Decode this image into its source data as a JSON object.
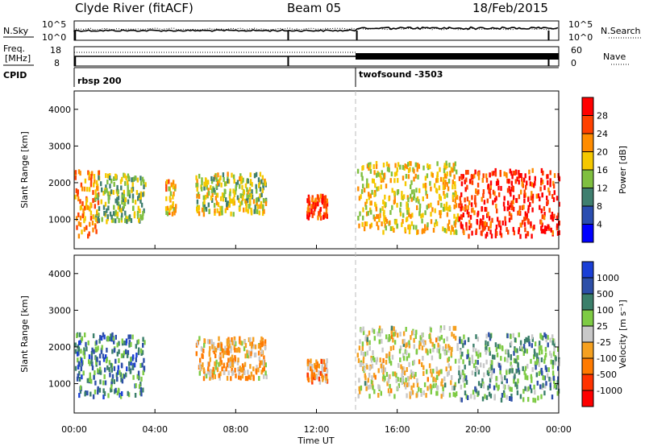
{
  "header": {
    "station": "Clyde River (fitACF)",
    "beam": "Beam 05",
    "date": "18/Feb/2015"
  },
  "noise_panel": {
    "left_label": "N.Sky",
    "left_ticks": [
      "10^5",
      "10^0"
    ],
    "right_label": "N.Search",
    "right_ticks": [
      "10^5",
      "10^0"
    ]
  },
  "freq_panel": {
    "left_label_1": "Freq.",
    "left_label_2": "[MHz]",
    "left_ticks": [
      "18",
      "8"
    ],
    "right_label": "Nave",
    "right_ticks": [
      "60",
      "0"
    ]
  },
  "cpid": {
    "label": "CPID",
    "segments": [
      {
        "name": "rbsp 200"
      },
      {
        "name": "twofsound -3503"
      }
    ],
    "switch_hour": 14.0
  },
  "time_axis": {
    "label": "Time UT",
    "ticks": [
      "00:00",
      "04:00",
      "08:00",
      "12:00",
      "16:00",
      "20:00",
      "00:00"
    ]
  },
  "colors": {
    "power_scale": [
      "#0000ff",
      "#2a4db0",
      "#3f7f6f",
      "#7fbf3f",
      "#f5c800",
      "#ff8c00",
      "#ff4000",
      "#ff0000"
    ],
    "velocity_scale": [
      "#1a3fd6",
      "#2d4fa8",
      "#3b7f6a",
      "#7ecb44",
      "#c8c8c8",
      "#f5a020",
      "#ff7a00",
      "#ff3300",
      "#ff0000"
    ]
  },
  "chart_data": [
    {
      "type": "heatmap",
      "title": "",
      "ylabel": "Slant Range [km]",
      "xlabel": "Time UT",
      "ylim": [
        200,
        4500
      ],
      "xlim": [
        0,
        24
      ],
      "y_ticks": [
        "1000",
        "2000",
        "3000",
        "4000"
      ],
      "colorbar": {
        "label": "Power [dB]",
        "ticks": [
          "28",
          "24",
          "20",
          "16",
          "12",
          "8",
          "4"
        ],
        "range": [
          0,
          32
        ]
      },
      "clusters": [
        {
          "t0": 0.0,
          "t1": 1.2,
          "r0": 600,
          "r1": 2400,
          "value": 22
        },
        {
          "t0": 1.0,
          "t1": 3.5,
          "r0": 1000,
          "r1": 2300,
          "value": 14
        },
        {
          "t0": 4.5,
          "t1": 5.0,
          "r0": 1200,
          "r1": 2100,
          "value": 20
        },
        {
          "t0": 6.0,
          "t1": 9.5,
          "r0": 1200,
          "r1": 2300,
          "value": 16
        },
        {
          "t0": 11.5,
          "t1": 12.5,
          "r0": 1100,
          "r1": 1700,
          "value": 26
        },
        {
          "t0": 14.0,
          "t1": 19.0,
          "r0": 700,
          "r1": 2600,
          "value": 18
        },
        {
          "t0": 19.0,
          "t1": 24.0,
          "r0": 600,
          "r1": 2400,
          "value": 28
        }
      ]
    },
    {
      "type": "heatmap",
      "title": "",
      "ylabel": "Slant Range [km]",
      "xlabel": "Time UT",
      "ylim": [
        200,
        4500
      ],
      "xlim": [
        0,
        24
      ],
      "y_ticks": [
        "1000",
        "2000",
        "3000",
        "4000"
      ],
      "colorbar": {
        "label": "Velocity [m s⁻¹]",
        "ticks": [
          "1000",
          "500",
          "100",
          "25",
          "-25",
          "-100",
          "-500",
          "-1000"
        ],
        "range": [
          -1000,
          1000
        ]
      },
      "clusters": [
        {
          "t0": 0.0,
          "t1": 3.5,
          "r0": 700,
          "r1": 2400,
          "value": 500
        },
        {
          "t0": 6.0,
          "t1": 9.5,
          "r0": 1200,
          "r1": 2300,
          "value": -200
        },
        {
          "t0": 11.5,
          "t1": 12.5,
          "r0": 1100,
          "r1": 1700,
          "value": -300
        },
        {
          "t0": 14.0,
          "t1": 19.0,
          "r0": 700,
          "r1": 2600,
          "value": 0
        },
        {
          "t0": 19.0,
          "t1": 24.0,
          "r0": 600,
          "r1": 2400,
          "value": 300
        }
      ]
    }
  ]
}
